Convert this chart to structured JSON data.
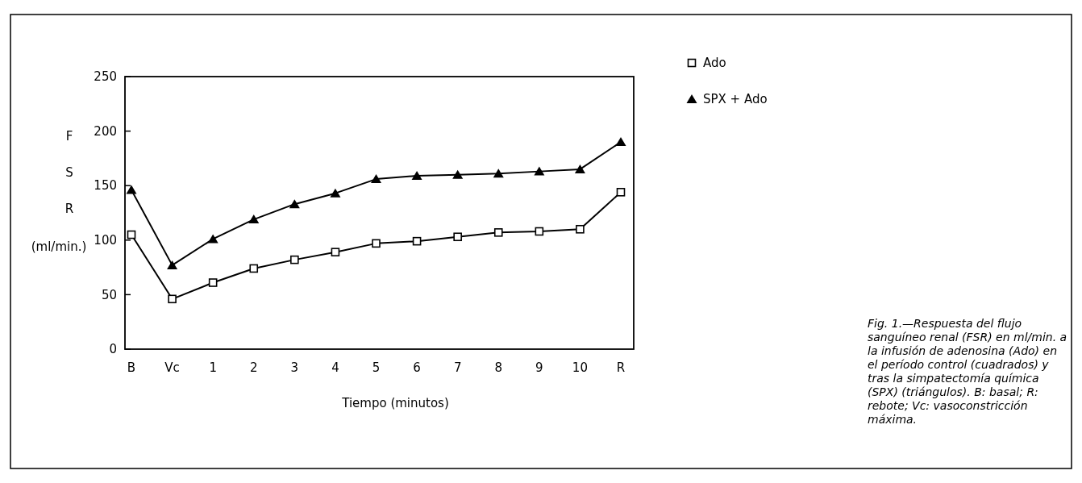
{
  "chart_data": {
    "type": "line",
    "xlabel": "Tiempo (minutos)",
    "ylabel": "F S R (ml/min.)",
    "categories": [
      "B",
      "Vc",
      "1",
      "2",
      "3",
      "4",
      "5",
      "6",
      "7",
      "8",
      "9",
      "10",
      "R"
    ],
    "series": [
      {
        "name": "Ado",
        "color": "#000000",
        "marker": "square",
        "values": [
          105,
          46,
          61,
          74,
          82,
          89,
          97,
          99,
          103,
          107,
          108,
          110,
          144
        ]
      },
      {
        "name": "SPX + Ado",
        "color": "#000000",
        "marker": "triangle",
        "values": [
          146,
          77,
          101,
          119,
          133,
          143,
          156,
          159,
          160,
          161,
          163,
          165,
          190
        ]
      }
    ],
    "ylim": [
      0,
      250
    ],
    "yticks": [
      0,
      50,
      100,
      150,
      200,
      250
    ],
    "legend": "top right",
    "line_style": "solid",
    "annotations": [
      "Fig. 1.—Respuesta del flujo sanguíneo renal (FSR) en ml/min. a la infusión de adenosina (Ado) en el período control (cuadrados) y tras la simpatectomía química (SPX) (triángulos). B: basal; R: rebote; Vc: vasoconstricción máxima."
    ]
  }
}
